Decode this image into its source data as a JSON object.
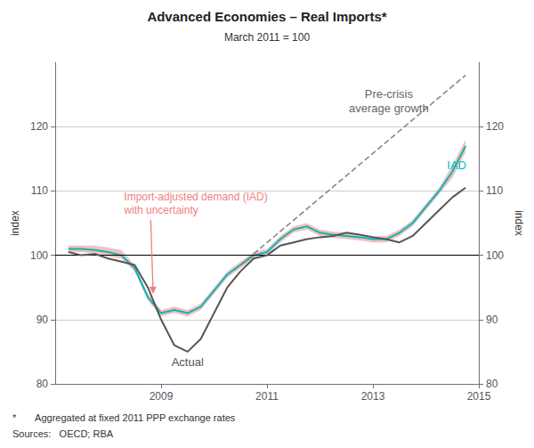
{
  "chart_data": {
    "type": "line",
    "title": "Advanced Economies – Real Imports*",
    "subtitle": "March 2011 = 100",
    "ylabel": "index",
    "y2label": "index",
    "footnotes": [
      "*       Aggregated at fixed 2011 PPP exchange rates",
      "Sources:   OECD; RBA"
    ],
    "xlim": [
      2007.0,
      2015.0
    ],
    "xticks": [
      2009,
      2011,
      2013,
      2015
    ],
    "ylim": [
      80,
      130
    ],
    "yticks": [
      80,
      90,
      100,
      110,
      120
    ],
    "y2lim": [
      80,
      130
    ],
    "y2ticks": [
      80,
      90,
      100,
      110,
      120
    ],
    "grid": true,
    "hline": 100,
    "series": [
      {
        "type": "band",
        "color": "#F08080",
        "x": [
          2007.25,
          2007.5,
          2007.75,
          2008.0,
          2008.25,
          2008.5,
          2008.75,
          2009.0,
          2009.25,
          2009.5,
          2009.75,
          2010.0,
          2010.25,
          2010.5,
          2010.75,
          2011.0,
          2011.25,
          2011.5,
          2011.75,
          2012.0,
          2012.25,
          2012.5,
          2012.75,
          2013.0,
          2013.25,
          2013.5,
          2013.75,
          2014.0,
          2014.25,
          2014.5,
          2014.75
        ],
        "lower": [
          100.5,
          100.5,
          100.2,
          99.8,
          99.5,
          97.5,
          93.0,
          90.5,
          91.0,
          90.5,
          91.5,
          94.0,
          96.5,
          98.0,
          99.5,
          100.0,
          102.0,
          103.5,
          104.0,
          103.0,
          102.7,
          102.5,
          102.3,
          102.0,
          102.0,
          103.0,
          104.5,
          107.0,
          109.5,
          112.0,
          116.0
        ],
        "upper": [
          101.5,
          101.5,
          101.5,
          101.2,
          100.8,
          98.5,
          94.0,
          91.5,
          92.0,
          91.5,
          92.5,
          95.0,
          97.5,
          99.0,
          100.5,
          101.0,
          103.0,
          104.5,
          105.0,
          104.0,
          103.7,
          103.5,
          103.3,
          103.0,
          103.0,
          104.0,
          105.5,
          108.0,
          110.5,
          114.0,
          118.0
        ]
      },
      {
        "type": "line",
        "color": "#00BABA",
        "x": [
          2007.25,
          2007.5,
          2007.75,
          2008.0,
          2008.25,
          2008.5,
          2008.75,
          2009.0,
          2009.25,
          2009.5,
          2009.75,
          2010.0,
          2010.25,
          2010.5,
          2010.75,
          2011.0,
          2011.25,
          2011.5,
          2011.75,
          2012.0,
          2012.25,
          2012.5,
          2012.75,
          2013.0,
          2013.25,
          2013.5,
          2013.75,
          2014.0,
          2014.25,
          2014.5,
          2014.75
        ],
        "values": [
          101.0,
          101.0,
          100.8,
          100.5,
          100.0,
          98.0,
          93.5,
          91.0,
          91.5,
          91.0,
          92.0,
          94.5,
          97.0,
          98.5,
          100.0,
          100.5,
          102.5,
          104.0,
          104.5,
          103.5,
          103.2,
          103.0,
          102.8,
          102.5,
          102.5,
          103.5,
          105.0,
          107.5,
          110.0,
          113.0,
          117.0
        ]
      },
      {
        "type": "line",
        "color": "#555555",
        "x": [
          2007.25,
          2007.5,
          2007.75,
          2008.0,
          2008.25,
          2008.5,
          2008.75,
          2009.0,
          2009.25,
          2009.5,
          2009.75,
          2010.0,
          2010.25,
          2010.5,
          2010.75,
          2011.0,
          2011.25,
          2011.5,
          2011.75,
          2012.0,
          2012.25,
          2012.5,
          2012.75,
          2013.0,
          2013.25,
          2013.5,
          2013.75,
          2014.0,
          2014.25,
          2014.5,
          2014.75
        ],
        "values": [
          100.5,
          100.0,
          100.2,
          99.5,
          99.0,
          98.5,
          95.0,
          90.0,
          86.0,
          85.0,
          87.0,
          91.0,
          95.0,
          97.5,
          99.5,
          100.0,
          101.5,
          102.0,
          102.5,
          102.8,
          103.0,
          103.5,
          103.2,
          102.8,
          102.5,
          102.0,
          103.0,
          105.0,
          107.0,
          109.0,
          110.5
        ]
      },
      {
        "type": "line",
        "color": "#888888",
        "line_style": "dashed",
        "x": [
          2010.5,
          2014.75
        ],
        "values": [
          98.5,
          128.0
        ]
      }
    ],
    "annotations": [
      {
        "text": "Actual",
        "x": 2009.5,
        "y": 84.5,
        "color": "#555555"
      },
      {
        "text": "IAD",
        "x": 2014.4,
        "y": 114.0,
        "color": "#00BABA"
      },
      {
        "text": "Pre-crisis\naverage growth",
        "x": 2013.3,
        "y": 124.0,
        "color": "#666666"
      },
      {
        "text": "Import-adjusted demand (IAD)\nwith uncertainty",
        "x": 2008.3,
        "y": 108.0,
        "color": "#F08080",
        "arrow_x": 2008.85,
        "arrow_y": 94.0
      }
    ]
  }
}
